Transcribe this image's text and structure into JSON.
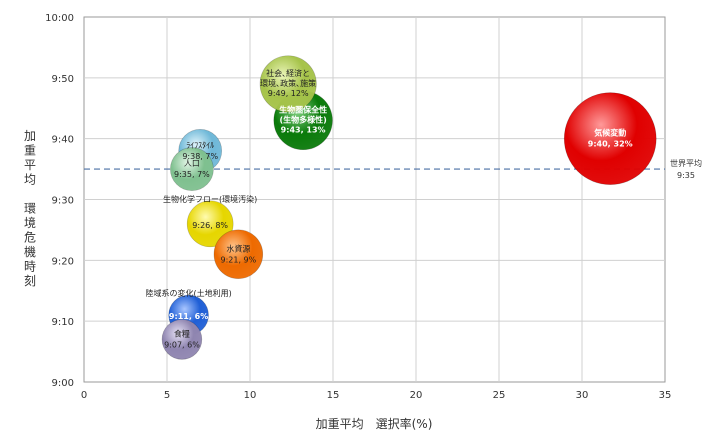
{
  "chart_data": {
    "type": "scatter",
    "subtype": "bubble",
    "xlabel": "加重平均　選択率(%)",
    "ylabel": "加重平均　環境危機時刻",
    "x_ticks": [
      "0",
      "5",
      "10",
      "15",
      "20",
      "25",
      "30",
      "35"
    ],
    "y_ticks": [
      "9:00",
      "9:10",
      "9:20",
      "9:30",
      "9:40",
      "9:50",
      "10:00"
    ],
    "xlim": [
      0,
      35
    ],
    "ylim_minutes": [
      540,
      600
    ],
    "grid": true,
    "reference_line": {
      "label_line1": "世界平均",
      "label_line2": "9:35",
      "y_minutes": 575,
      "style": "dashed",
      "color": "#4a6fa5"
    },
    "points": [
      {
        "name": "気候変動",
        "value_label": "9:40, 32%",
        "x": 31.7,
        "y_minutes": 580,
        "size": 32,
        "color": "#e00000",
        "light": "#ff9a9a",
        "label_color": "#ffffff",
        "label_pos": "inside"
      },
      {
        "name": "生物圏保全性",
        "name2": "(生物多様性)",
        "value_label": "9:43, 13%",
        "x": 13.2,
        "y_minutes": 583,
        "size": 13,
        "color": "#0a7a0a",
        "light": "#7fd07f",
        "label_color": "#ffffff",
        "label_pos": "inside"
      },
      {
        "name": "社会､経済と",
        "name2": "環境､政策､施策",
        "value_label": "9:49, 12%",
        "x": 12.3,
        "y_minutes": 589,
        "size": 12,
        "color": "#a6c34a",
        "light": "#eaf5b8",
        "label_color": "#222222",
        "label_pos": "inside"
      },
      {
        "name": "ﾗｲﾌｽﾀｲﾙ",
        "value_label": "9:38, 7%",
        "x": 7.0,
        "y_minutes": 578,
        "size": 7,
        "color": "#6fb8d8",
        "light": "#e0f4fb",
        "label_color": "#222222",
        "label_pos": "inside"
      },
      {
        "name": "人口",
        "value_label": "9:35, 7%",
        "x": 6.5,
        "y_minutes": 575,
        "size": 7,
        "color": "#7fc08f",
        "light": "#e2f5e6",
        "label_color": "#222222",
        "label_pos": "inside"
      },
      {
        "name": "生物化学フロー(環境汚染)",
        "value_label": "9:26, 8%",
        "x": 7.6,
        "y_minutes": 566,
        "size": 8,
        "color": "#e6d600",
        "light": "#fffbb0",
        "label_color": "#222222",
        "label_pos": "above"
      },
      {
        "name": "水資源",
        "value_label": "9:21, 9%",
        "x": 9.3,
        "y_minutes": 561,
        "size": 9,
        "color": "#ee6a00",
        "light": "#ffc48a",
        "label_color": "#222222",
        "label_pos": "inside"
      },
      {
        "name": "陸域系の変化(土地利用)",
        "value_label": "9:11, 6%",
        "x": 6.3,
        "y_minutes": 551,
        "size": 6,
        "color": "#1f5fd6",
        "light": "#a9c6ff",
        "label_color": "#ffffff",
        "label_pos": "above"
      },
      {
        "name": "食糧",
        "value_label": "9:07, 6%",
        "x": 5.9,
        "y_minutes": 547,
        "size": 6,
        "color": "#8f85b0",
        "light": "#e6e1f5",
        "label_color": "#222222",
        "label_pos": "inside"
      }
    ]
  }
}
